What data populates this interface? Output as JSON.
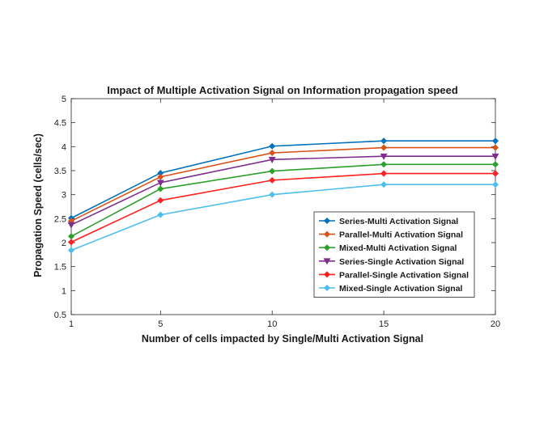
{
  "chart_data": {
    "type": "line",
    "title": "Impact of Multiple Activation Signal on Information propagation speed",
    "xlabel": "Number of cells impacted by Single/Multi Activation Signal",
    "ylabel": "Propagation Speed (cells/sec)",
    "x": [
      1,
      5,
      10,
      15,
      20
    ],
    "xticks": [
      1,
      5,
      10,
      15,
      20
    ],
    "xlim": [
      1,
      20
    ],
    "ylim": [
      0.5,
      5
    ],
    "yticks": [
      0.5,
      1,
      1.5,
      2,
      2.5,
      3,
      3.5,
      4,
      4.5,
      5
    ],
    "grid": false,
    "legend_position": "lower-right",
    "series": [
      {
        "name": "Series-Multi Activation Signal",
        "color": "#0072BD",
        "marker": "diamond",
        "values": [
          2.51,
          3.45,
          4.01,
          4.12,
          4.12
        ]
      },
      {
        "name": "Parallel-Multi Activation Signal",
        "color": "#D95319",
        "marker": "diamond",
        "values": [
          2.45,
          3.37,
          3.87,
          3.98,
          3.98
        ]
      },
      {
        "name": "Mixed-Multi Activation Signal",
        "color": "#2CA02C",
        "marker": "diamond",
        "values": [
          2.13,
          3.12,
          3.49,
          3.63,
          3.63
        ]
      },
      {
        "name": "Series-Single Activation Signal",
        "color": "#7E2F8E",
        "marker": "triangle-down",
        "values": [
          2.37,
          3.25,
          3.73,
          3.8,
          3.8
        ]
      },
      {
        "name": "Parallel-Single Activation Signal",
        "color": "#FF2020",
        "marker": "diamond",
        "values": [
          2.01,
          2.88,
          3.3,
          3.44,
          3.44
        ]
      },
      {
        "name": "Mixed-Single Activation Signal",
        "color": "#4DBEEE",
        "marker": "diamond",
        "values": [
          1.84,
          2.58,
          3.0,
          3.21,
          3.21
        ]
      }
    ]
  }
}
